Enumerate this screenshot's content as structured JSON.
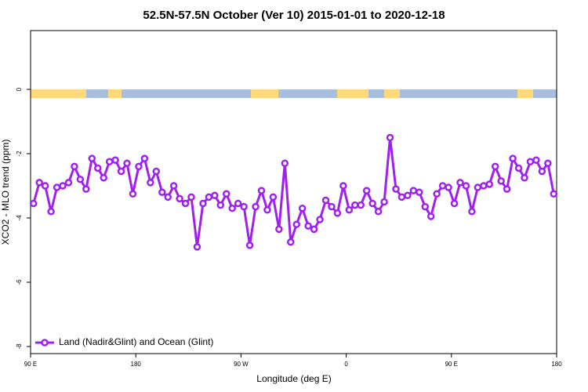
{
  "chart_data": {
    "type": "line",
    "title": "52.5N-57.5N October (Ver 10)   2015-01-01 to 2020-12-18",
    "xlabel": "Longitude (deg E)",
    "ylabel": "XCO2 - MLO trend (ppm)",
    "xlim": [
      90,
      540
    ],
    "xticks": [
      {
        "value": 90,
        "label": "90 E"
      },
      180,
      {
        "value": 270,
        "label": "90 W"
      },
      {
        "value": 360,
        "label": "0"
      },
      {
        "value": 450,
        "label": "90 E"
      },
      {
        "value": 540,
        "label": "180"
      }
    ],
    "ylim": [
      -8.22,
      1.83
    ],
    "yticks": [
      0,
      -2,
      -4,
      -6,
      -8
    ],
    "legend": "bottom-left",
    "x": [
      92.5,
      97.5,
      102.5,
      107.5,
      112.5,
      117.5,
      122.5,
      127.5,
      132.5,
      137.5,
      142.5,
      147.5,
      152.5,
      157.5,
      162.5,
      167.5,
      172.5,
      177.5,
      182.5,
      187.5,
      192.5,
      197.5,
      202.5,
      207.5,
      212.5,
      217.5,
      222.5,
      227.5,
      232.5,
      237.5,
      242.5,
      247.5,
      252.5,
      257.5,
      262.5,
      267.5,
      272.5,
      277.5,
      282.5,
      287.5,
      292.5,
      297.5,
      302.5,
      307.5,
      312.5,
      317.5,
      322.5,
      327.5,
      332.5,
      337.5,
      342.5,
      347.5,
      352.5,
      357.5,
      362.5,
      367.5,
      372.5,
      377.5,
      382.5,
      387.5,
      392.5,
      397.5,
      402.5,
      407.5,
      412.5,
      417.5,
      422.5,
      427.5,
      432.5,
      437.5,
      442.5,
      447.5,
      452.5,
      457.5,
      462.5,
      467.5,
      472.5,
      477.5,
      482.5,
      487.5,
      492.5,
      497.5,
      502.5,
      507.5,
      512.5,
      517.5,
      522.5,
      527.5,
      532.5,
      537.5
    ],
    "series": [
      {
        "name": "Land (Nadir&Glint) and Ocean (Glint)",
        "color": "#a020f0",
        "values": [
          -3.55,
          -2.9,
          -3.0,
          -3.8,
          -3.05,
          -3.0,
          -2.9,
          -2.4,
          -2.8,
          -3.1,
          -2.15,
          -2.45,
          -2.75,
          -2.25,
          -2.2,
          -2.55,
          -2.3,
          -3.25,
          -2.4,
          -2.15,
          -2.9,
          -2.55,
          -3.2,
          -3.35,
          -3.0,
          -3.4,
          -3.55,
          -3.35,
          -4.9,
          -3.55,
          -3.35,
          -3.3,
          -3.6,
          -3.25,
          -3.7,
          -3.55,
          -3.65,
          -4.85,
          -3.65,
          -3.15,
          -3.75,
          -3.35,
          -4.35,
          -2.3,
          -4.75,
          -4.2,
          -3.7,
          -4.25,
          -4.35,
          -4.05,
          -3.45,
          -3.65,
          -3.85,
          -3.0,
          -3.75,
          -3.6,
          -3.6,
          -3.15,
          -3.55,
          -3.8,
          -3.5,
          -1.5,
          -3.1,
          -3.35,
          -3.3,
          -3.15,
          -3.2,
          -3.65,
          -3.95,
          -3.25,
          -3.0,
          -3.05,
          -3.55,
          -2.9,
          -3.0,
          -3.8,
          -3.05,
          -3.0,
          -2.95,
          -2.4,
          -2.85,
          -3.1,
          -2.15,
          -2.45,
          -2.75,
          -2.25,
          -2.2,
          -2.55,
          -2.3,
          -3.25
        ]
      }
    ]
  }
}
